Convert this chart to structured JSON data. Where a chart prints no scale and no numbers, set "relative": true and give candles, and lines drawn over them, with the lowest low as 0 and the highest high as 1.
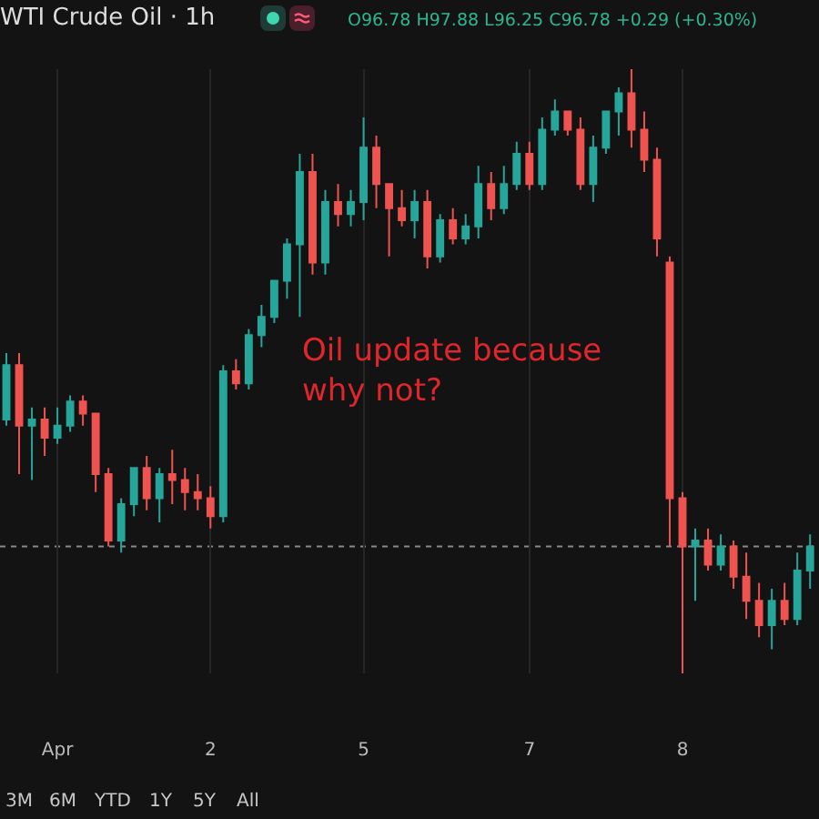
{
  "chart_data": {
    "type": "candlestick",
    "title": "WTI Crude Oil · 1h",
    "relative": true,
    "grid": "x",
    "categories": [
      null,
      null,
      null,
      null,
      "Apr",
      null,
      null,
      null,
      null,
      null,
      null,
      null,
      null,
      null,
      null,
      null,
      "2",
      null,
      null,
      null,
      null,
      null,
      null,
      null,
      null,
      null,
      null,
      null,
      "5",
      null,
      null,
      null,
      null,
      null,
      null,
      null,
      null,
      null,
      null,
      null,
      null,
      "7",
      null,
      null,
      null,
      null,
      null,
      null,
      null,
      null,
      null,
      null,
      null,
      "8",
      null,
      null,
      null,
      null,
      null,
      null,
      null,
      null,
      null,
      null
    ],
    "ohlc": [
      [
        0.42,
        0.53,
        0.41,
        0.51
      ],
      [
        0.51,
        0.53,
        0.33,
        0.41
      ],
      [
        0.41,
        0.44,
        0.32,
        0.42
      ],
      [
        0.42,
        0.44,
        0.36,
        0.39
      ],
      [
        0.39,
        0.44,
        0.38,
        0.41
      ],
      [
        0.41,
        0.46,
        0.4,
        0.45
      ],
      [
        0.45,
        0.46,
        0.41,
        0.43
      ],
      [
        0.43,
        0.43,
        0.3,
        0.33
      ],
      [
        0.33,
        0.34,
        0.21,
        0.22
      ],
      [
        0.22,
        0.29,
        0.2,
        0.28
      ],
      [
        0.28,
        0.34,
        0.26,
        0.34
      ],
      [
        0.34,
        0.36,
        0.27,
        0.29
      ],
      [
        0.29,
        0.34,
        0.25,
        0.33
      ],
      [
        0.33,
        0.37,
        0.28,
        0.32
      ],
      [
        0.32,
        0.34,
        0.27,
        0.3
      ],
      [
        0.3,
        0.33,
        0.27,
        0.29
      ],
      [
        0.29,
        0.31,
        0.24,
        0.26
      ],
      [
        0.26,
        0.51,
        0.25,
        0.5
      ],
      [
        0.5,
        0.52,
        0.47,
        0.48
      ],
      [
        0.48,
        0.57,
        0.47,
        0.56
      ],
      [
        0.56,
        0.61,
        0.54,
        0.59
      ],
      [
        0.59,
        0.65,
        0.58,
        0.65
      ],
      [
        0.65,
        0.72,
        0.62,
        0.71
      ],
      [
        0.71,
        0.86,
        0.59,
        0.83
      ],
      [
        0.83,
        0.86,
        0.66,
        0.68
      ],
      [
        0.68,
        0.8,
        0.66,
        0.78
      ],
      [
        0.78,
        0.81,
        0.74,
        0.76
      ],
      [
        0.76,
        0.8,
        0.74,
        0.78
      ],
      [
        0.78,
        0.92,
        0.75,
        0.87
      ],
      [
        0.87,
        0.89,
        0.77,
        0.81
      ],
      [
        0.81,
        0.81,
        0.69,
        0.77
      ],
      [
        0.77,
        0.8,
        0.74,
        0.75
      ],
      [
        0.75,
        0.8,
        0.72,
        0.78
      ],
      [
        0.78,
        0.8,
        0.67,
        0.69
      ],
      [
        0.69,
        0.76,
        0.68,
        0.75
      ],
      [
        0.75,
        0.77,
        0.71,
        0.72
      ],
      [
        0.72,
        0.76,
        0.71,
        0.74
      ],
      [
        0.74,
        0.84,
        0.72,
        0.81
      ],
      [
        0.81,
        0.83,
        0.75,
        0.77
      ],
      [
        0.77,
        0.84,
        0.76,
        0.81
      ],
      [
        0.81,
        0.88,
        0.8,
        0.86
      ],
      [
        0.86,
        0.88,
        0.8,
        0.81
      ],
      [
        0.81,
        0.92,
        0.8,
        0.9
      ],
      [
        0.9,
        0.95,
        0.89,
        0.93
      ],
      [
        0.93,
        0.93,
        0.89,
        0.9
      ],
      [
        0.9,
        0.92,
        0.8,
        0.81
      ],
      [
        0.81,
        0.89,
        0.78,
        0.87
      ],
      [
        0.87,
        0.93,
        0.86,
        0.93
      ],
      [
        0.93,
        0.97,
        0.89,
        0.96
      ],
      [
        0.96,
        1,
        0.87,
        0.9
      ],
      [
        0.9,
        0.93,
        0.83,
        0.85
      ],
      [
        0.85,
        0.87,
        0.69,
        0.72
      ],
      [
        0.68,
        0.69,
        0.21,
        0.29
      ],
      [
        0.29,
        0.3,
        0,
        0.21
      ],
      [
        0.21,
        0.24,
        0.12,
        0.22
      ],
      [
        0.22,
        0.24,
        0.17,
        0.18
      ],
      [
        0.18,
        0.23,
        0.17,
        0.21
      ],
      [
        0.21,
        0.22,
        0.14,
        0.16
      ],
      [
        0.16,
        0.2,
        0.09,
        0.12
      ],
      [
        0.12,
        0.15,
        0.06,
        0.08
      ],
      [
        0.08,
        0.14,
        0.04,
        0.12
      ],
      [
        0.12,
        0.15,
        0.08,
        0.09
      ],
      [
        0.09,
        0.2,
        0.08,
        0.17
      ],
      [
        0.17,
        0.23,
        0.14,
        0.21
      ]
    ],
    "colors": [
      "#26a69a",
      "#ef5350",
      "#26a69a",
      "#ef5350",
      "#26a69a",
      "#26a69a",
      "#ef5350",
      "#ef5350",
      "#ef5350",
      "#26a69a",
      "#26a69a",
      "#ef5350",
      "#26a69a",
      "#ef5350",
      "#ef5350",
      "#ef5350",
      "#ef5350",
      "#26a69a",
      "#ef5350",
      "#26a69a",
      "#26a69a",
      "#26a69a",
      "#26a69a",
      "#26a69a",
      "#ef5350",
      "#26a69a",
      "#ef5350",
      "#26a69a",
      "#26a69a",
      "#ef5350",
      "#ef5350",
      "#ef5350",
      "#26a69a",
      "#ef5350",
      "#26a69a",
      "#ef5350",
      "#26a69a",
      "#26a69a",
      "#ef5350",
      "#26a69a",
      "#26a69a",
      "#ef5350",
      "#26a69a",
      "#26a69a",
      "#ef5350",
      "#ef5350",
      "#26a69a",
      "#26a69a",
      "#26a69a",
      "#ef5350",
      "#ef5350",
      "#ef5350",
      "#ef5350",
      "#ef5350",
      "#26a69a",
      "#ef5350",
      "#26a69a",
      "#ef5350",
      "#ef5350",
      "#ef5350",
      "#26a69a",
      "#ef5350",
      "#26a69a",
      "#26a69a"
    ],
    "ref_lines": [
      {
        "axis": "y",
        "value": 0.21,
        "color": "#8a8a8a",
        "line_style": "dotted"
      }
    ],
    "annotations": [
      "O96.78 H97.88 L96.25 C96.78 +0.29 (+0.30%)",
      "Oil update because why not?",
      "3M",
      "6M",
      "YTD",
      "1Y",
      "5Y",
      "All"
    ]
  }
}
